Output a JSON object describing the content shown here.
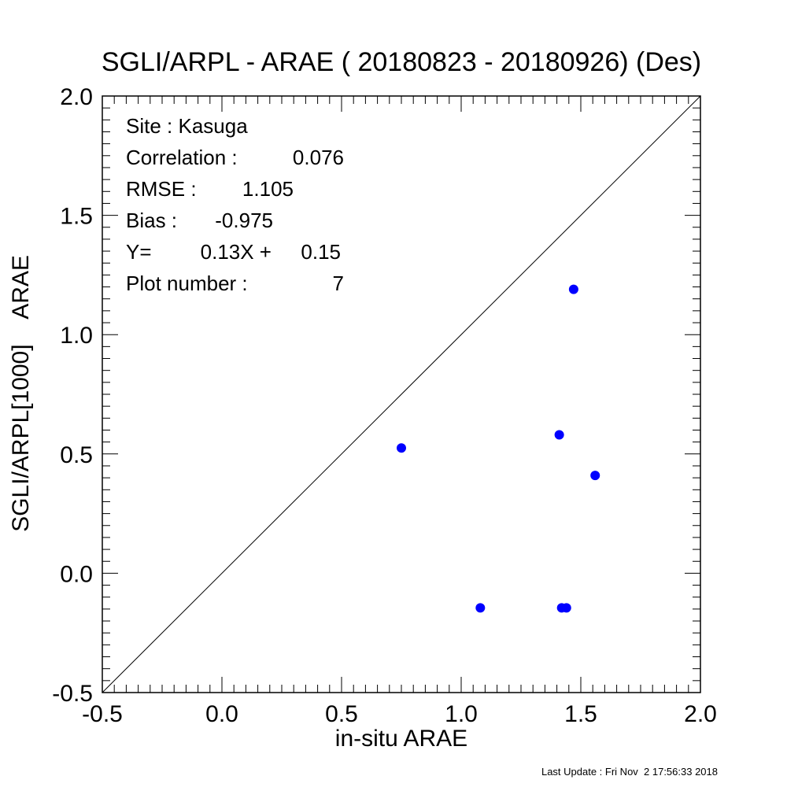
{
  "chart_data": {
    "type": "scatter",
    "title": "SGLI/ARPL - ARAE ( 20180823 - 20180926) (Des)",
    "xlabel": "in-situ ARAE",
    "ylabel": "SGLI/ARPL[1000]    ARAE",
    "xlim": [
      -0.5,
      2.0
    ],
    "ylim": [
      -0.5,
      2.0
    ],
    "x_ticks": [
      "-0.5",
      "0.0",
      "0.5",
      "1.0",
      "1.5",
      "2.0"
    ],
    "y_ticks": [
      "-0.5",
      "0.0",
      "0.5",
      "1.0",
      "1.5",
      "2.0"
    ],
    "reference_line": "y = x",
    "point_color": "#0000ff",
    "series": [
      {
        "x": [
          1.47,
          0.75,
          1.41,
          1.56,
          1.08,
          1.42,
          1.44
        ],
        "y": [
          1.19,
          0.525,
          0.58,
          0.41,
          -0.145,
          -0.145,
          -0.145
        ]
      }
    ]
  },
  "stats": {
    "site": "Site : Kasuga",
    "correlation_label": "Correlation :",
    "correlation_value": "0.076",
    "rmse_label": "RMSE :",
    "rmse_value": "1.105",
    "bias_label": "Bias :",
    "bias_value": "-0.975",
    "regression_label": "Y=",
    "regression_slope": "0.13X +",
    "regression_intercept": "0.15",
    "plot_number_label": "Plot number :",
    "plot_number_value": "7"
  },
  "footer": {
    "last_update": "Last Update : Fri Nov  2 17:56:33 2018"
  }
}
